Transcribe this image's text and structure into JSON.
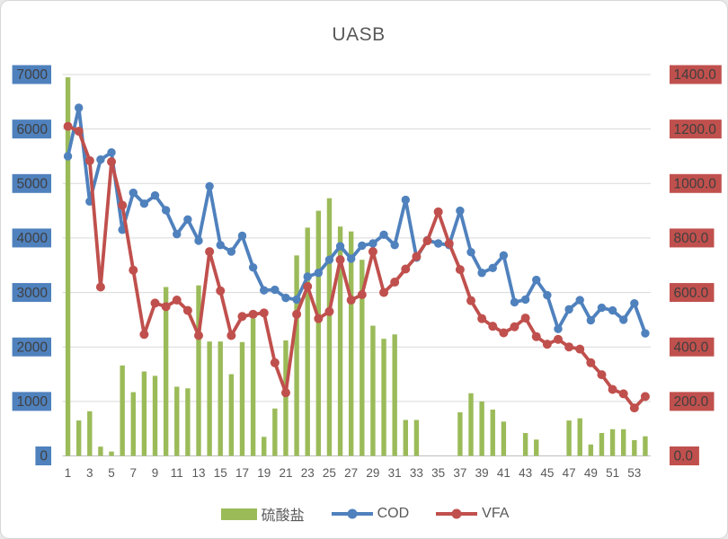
{
  "chart_data": {
    "type": "combo",
    "title": "UASB",
    "grid": true,
    "legend_position": "bottom",
    "left_axis": {
      "min": 0,
      "max": 7000,
      "step": 1000,
      "tick_labels": [
        "0",
        "1000",
        "2000",
        "3000",
        "4000",
        "5000",
        "6000",
        "7000"
      ],
      "box_color": "#4F81BD"
    },
    "right_axis": {
      "min": 0,
      "max": 1400,
      "step": 200,
      "tick_labels": [
        "0.0",
        "200.0",
        "400.0",
        "600.0",
        "800.0",
        "1000.0",
        "1200.0",
        "1400.0"
      ],
      "box_color": "#C0504D"
    },
    "x_tick_labels": [
      "1",
      "3",
      "5",
      "7",
      "9",
      "11",
      "13",
      "15",
      "17",
      "19",
      "21",
      "23",
      "25",
      "27",
      "29",
      "31",
      "33",
      "35",
      "37",
      "39",
      "41",
      "43",
      "45",
      "47",
      "49",
      "51",
      "53"
    ],
    "series": [
      {
        "name": "硫酸盐",
        "type": "bar",
        "axis": "left",
        "color": "#9BBB59",
        "values": [
          6950,
          650,
          820,
          170,
          80,
          1660,
          1170,
          1550,
          1470,
          3100,
          1270,
          1240,
          3130,
          2100,
          2100,
          1500,
          2090,
          2520,
          350,
          870,
          2120,
          3680,
          4190,
          4500,
          4730,
          4210,
          4120,
          3600,
          2390,
          2150,
          2230,
          660,
          660,
          0,
          0,
          0,
          800,
          1150,
          1000,
          850,
          630,
          0,
          420,
          300,
          0,
          0,
          650,
          690,
          210,
          420,
          490,
          490,
          290,
          360
        ]
      },
      {
        "name": "COD",
        "type": "line",
        "axis": "left",
        "color": "#4F81BD",
        "values": [
          5500,
          6390,
          4670,
          5440,
          5570,
          4150,
          4830,
          4630,
          4780,
          4510,
          4070,
          4340,
          3950,
          4950,
          3870,
          3750,
          4040,
          3460,
          3040,
          3050,
          2900,
          2870,
          3290,
          3360,
          3600,
          3850,
          3620,
          3860,
          3900,
          4060,
          3870,
          4700,
          3640,
          3960,
          3900,
          3870,
          4500,
          3740,
          3360,
          3450,
          3680,
          2820,
          2870,
          3230,
          2950,
          2330,
          2690,
          2860,
          2490,
          2720,
          2670,
          2500,
          2800,
          2250
        ]
      },
      {
        "name": "VFA",
        "type": "line",
        "axis": "right",
        "color": "#C0504D",
        "values": [
          1210,
          1192,
          1084,
          620,
          1080,
          920,
          682,
          446,
          561,
          548,
          572,
          534,
          442,
          750,
          606,
          442,
          512,
          520,
          525,
          342,
          232,
          520,
          622,
          504,
          530,
          720,
          572,
          592,
          750,
          600,
          638,
          686,
          732,
          790,
          896,
          780,
          684,
          570,
          504,
          476,
          452,
          474,
          506,
          438,
          410,
          428,
          400,
          392,
          342,
          298,
          244,
          228,
          176,
          218
        ]
      }
    ]
  },
  "colors": {
    "gridline": "#D9D9D9",
    "axis_line": "#BFBFBF",
    "title_text": "#595959",
    "axis_box_text": "#3f3f3f"
  }
}
